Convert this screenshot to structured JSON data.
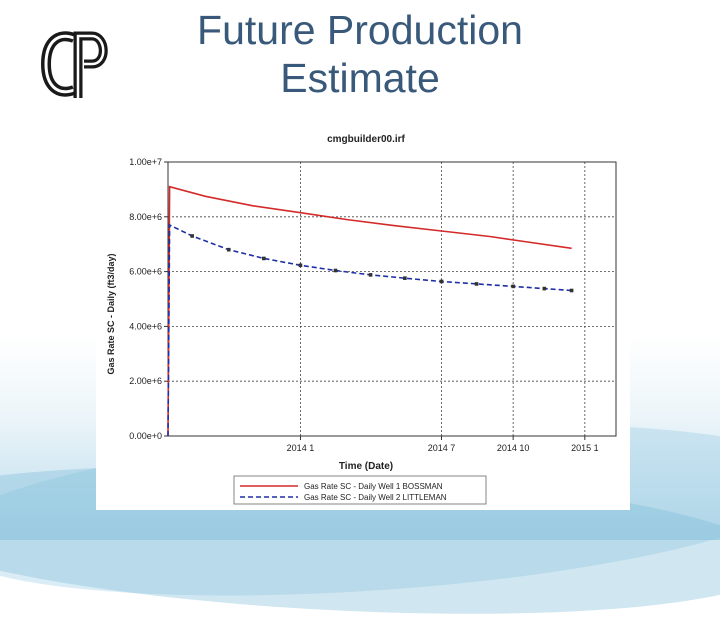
{
  "slide": {
    "title_line1": "Future Production",
    "title_line2": "Estimate",
    "logo_text": "CP"
  },
  "chart_data": {
    "type": "line",
    "title": "cmgbuilder00.irf",
    "xlabel": "Time (Date)",
    "ylabel": "Gas Rate SC - Daily (ft3/day)",
    "ylim": [
      0,
      10000000
    ],
    "xlim": [
      "2013-07-15",
      "2015-02-10"
    ],
    "x_ticks": [
      {
        "date": "2014-01-01",
        "label": "2014 1"
      },
      {
        "date": "2014-07-01",
        "label": "2014 7"
      },
      {
        "date": "2014-10-01",
        "label": "2014 10"
      },
      {
        "date": "2015-01-01",
        "label": "2015 1"
      }
    ],
    "y_ticks": [
      {
        "value": 0,
        "label": "0.00e+0"
      },
      {
        "value": 2000000,
        "label": "2.00e+6"
      },
      {
        "value": 4000000,
        "label": "4.00e+6"
      },
      {
        "value": 6000000,
        "label": "6.00e+6"
      },
      {
        "value": 8000000,
        "label": "8.00e+6"
      },
      {
        "value": 10000000,
        "label": "1.00e+7"
      }
    ],
    "grid": true,
    "legend_position": "bottom",
    "series": [
      {
        "name": "Gas Rate SC - Daily Well 1 BOSSMAN",
        "color": "#d42a2a",
        "style": "solid",
        "points": [
          [
            "2013-07-15",
            0
          ],
          [
            "2013-07-17",
            9100000
          ],
          [
            "2013-09-01",
            8750000
          ],
          [
            "2013-11-01",
            8400000
          ],
          [
            "2014-01-01",
            8150000
          ],
          [
            "2014-03-01",
            7900000
          ],
          [
            "2014-05-01",
            7680000
          ],
          [
            "2014-07-01",
            7480000
          ],
          [
            "2014-09-01",
            7280000
          ],
          [
            "2014-10-15",
            7100000
          ],
          [
            "2014-12-15",
            6850000
          ]
        ]
      },
      {
        "name": "Gas Rate SC - Daily Well 2 LITTLEMAN",
        "color": "#1f2fa8",
        "style": "dashed",
        "marker": "square",
        "points": [
          [
            "2013-07-15",
            0
          ],
          [
            "2013-07-17",
            7700000
          ],
          [
            "2013-08-15",
            7300000
          ],
          [
            "2013-10-01",
            6800000
          ],
          [
            "2013-11-15",
            6480000
          ],
          [
            "2014-01-01",
            6230000
          ],
          [
            "2014-02-15",
            6040000
          ],
          [
            "2014-04-01",
            5880000
          ],
          [
            "2014-05-15",
            5760000
          ],
          [
            "2014-07-01",
            5640000
          ],
          [
            "2014-08-15",
            5550000
          ],
          [
            "2014-10-01",
            5460000
          ],
          [
            "2014-11-10",
            5380000
          ],
          [
            "2014-12-15",
            5310000
          ]
        ]
      }
    ]
  }
}
